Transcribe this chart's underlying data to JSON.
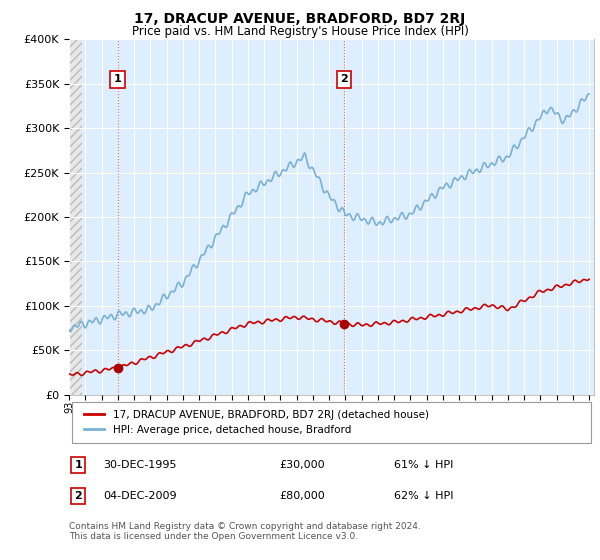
{
  "title": "17, DRACUP AVENUE, BRADFORD, BD7 2RJ",
  "subtitle": "Price paid vs. HM Land Registry's House Price Index (HPI)",
  "background_color": "#ffffff",
  "plot_bg_color": "#ddeeff",
  "hatch_color": "#bbbbbb",
  "ylim": [
    0,
    400000
  ],
  "yticks": [
    0,
    50000,
    100000,
    150000,
    200000,
    250000,
    300000,
    350000,
    400000
  ],
  "ytick_labels": [
    "£0",
    "£50K",
    "£100K",
    "£150K",
    "£200K",
    "£250K",
    "£300K",
    "£350K",
    "£400K"
  ],
  "grid_color": "#ffffff",
  "red_line_color": "#cc0000",
  "blue_line_color": "#7ab0d4",
  "marker1_date": 1995.99,
  "marker1_value": 30000,
  "marker2_date": 2009.92,
  "marker2_value": 80000,
  "annotation1_label": "1",
  "annotation2_label": "2",
  "legend_label1": "17, DRACUP AVENUE, BRADFORD, BD7 2RJ (detached house)",
  "legend_label2": "HPI: Average price, detached house, Bradford",
  "copyright": "Contains HM Land Registry data © Crown copyright and database right 2024.\nThis data is licensed under the Open Government Licence v3.0.",
  "hatch_end_year": 1993.5,
  "xmin": 1993.0,
  "xmax": 2025.3
}
